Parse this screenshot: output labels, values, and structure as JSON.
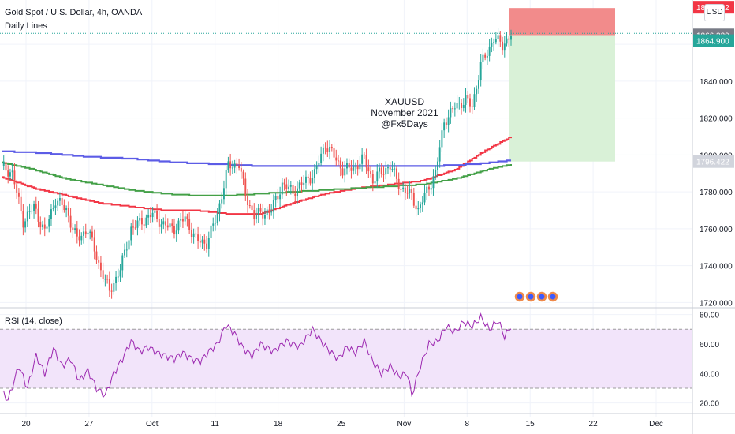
{
  "header": {
    "title": "Gold Spot / U.S. Dollar, 4h, OANDA",
    "indicator": "Daily Lines",
    "currency": "USD"
  },
  "annotation": {
    "line1": "XAUUSD",
    "line2": "November 2021",
    "line3": "@Fx5Days"
  },
  "rsi_label": "RSI (14, close)",
  "colors": {
    "up": "#26a69a",
    "down": "#ef5350",
    "red_line": "#f23645",
    "green_line": "#43a047",
    "blue_line": "#5c5ce6",
    "rsi_line": "#9c27b0",
    "rsi_band": "#f2e4fa",
    "stop_zone": "#f28b8b",
    "target_zone": "#d9f1d7",
    "price_dotted": "#26a69a"
  },
  "chart_data": [
    {
      "type": "candlestick",
      "title": "Gold Spot / U.S. Dollar, 4h, OANDA",
      "x_tick_labels": [
        "20",
        "27",
        "Oct",
        "11",
        "18",
        "25",
        "Nov",
        "8",
        "15",
        "22",
        "Dec"
      ],
      "y_tick_values": [
        1720,
        1740,
        1760,
        1780,
        1800,
        1820,
        1840,
        1860
      ],
      "y_tick_labels": [
        "1720.000",
        "1740.000",
        "1760.000",
        "1780.000",
        "1800.000",
        "1820.000",
        "1840.000",
        "1860.000"
      ],
      "ylim": [
        1718,
        1884
      ],
      "price_labels": {
        "stop": "1879.652",
        "current": "1866.339",
        "entry": "1864.900",
        "target": "1796.422"
      },
      "position": {
        "entry": 1864.9,
        "stop": 1879.652,
        "target": 1796.422
      },
      "anchors": [
        [
          0,
          1794
        ],
        [
          5,
          1790
        ],
        [
          10,
          1764
        ],
        [
          15,
          1772
        ],
        [
          20,
          1758
        ],
        [
          25,
          1776
        ],
        [
          30,
          1770
        ],
        [
          35,
          1754
        ],
        [
          40,
          1760
        ],
        [
          45,
          1741
        ],
        [
          50,
          1726
        ],
        [
          55,
          1738
        ],
        [
          60,
          1760
        ],
        [
          65,
          1764
        ],
        [
          70,
          1768
        ],
        [
          75,
          1762
        ],
        [
          80,
          1760
        ],
        [
          85,
          1766
        ],
        [
          90,
          1754
        ],
        [
          95,
          1752
        ],
        [
          100,
          1768
        ],
        [
          105,
          1794
        ],
        [
          110,
          1795
        ],
        [
          113,
          1778
        ],
        [
          117,
          1767
        ],
        [
          125,
          1770
        ],
        [
          130,
          1784
        ],
        [
          135,
          1780
        ],
        [
          140,
          1785
        ],
        [
          145,
          1790
        ],
        [
          150,
          1806
        ],
        [
          153,
          1801
        ],
        [
          158,
          1792
        ],
        [
          163,
          1793
        ],
        [
          168,
          1798
        ],
        [
          172,
          1786
        ],
        [
          175,
          1790
        ],
        [
          180,
          1794
        ],
        [
          185,
          1782
        ],
        [
          190,
          1778
        ],
        [
          193,
          1770
        ],
        [
          198,
          1783
        ],
        [
          201,
          1790
        ],
        [
          205,
          1818
        ],
        [
          210,
          1826
        ],
        [
          215,
          1830
        ],
        [
          218,
          1826
        ],
        [
          222,
          1849
        ],
        [
          225,
          1855
        ],
        [
          228,
          1864
        ],
        [
          232,
          1859
        ],
        [
          236,
          1866
        ]
      ],
      "series_lines": [
        {
          "color": "red",
          "points": [
            [
              0,
              1788
            ],
            [
              15,
              1782
            ],
            [
              30,
              1778
            ],
            [
              45,
              1774
            ],
            [
              60,
              1772
            ],
            [
              75,
              1770
            ],
            [
              90,
              1770
            ],
            [
              105,
              1768
            ],
            [
              120,
              1768
            ],
            [
              135,
              1774
            ],
            [
              150,
              1779
            ],
            [
              165,
              1782
            ],
            [
              180,
              1784
            ],
            [
              195,
              1786
            ],
            [
              210,
              1792
            ],
            [
              225,
              1803
            ],
            [
              236,
              1810
            ]
          ]
        },
        {
          "color": "green",
          "points": [
            [
              0,
              1796
            ],
            [
              15,
              1792
            ],
            [
              30,
              1787
            ],
            [
              45,
              1784
            ],
            [
              60,
              1781
            ],
            [
              75,
              1779
            ],
            [
              90,
              1778
            ],
            [
              105,
              1778
            ],
            [
              120,
              1779
            ],
            [
              135,
              1780
            ],
            [
              150,
              1781
            ],
            [
              165,
              1782
            ],
            [
              180,
              1783
            ],
            [
              195,
              1784
            ],
            [
              210,
              1787
            ],
            [
              225,
              1792
            ],
            [
              236,
              1795
            ]
          ]
        },
        {
          "color": "blue",
          "points": [
            [
              0,
              1802
            ],
            [
              20,
              1801
            ],
            [
              40,
              1799
            ],
            [
              60,
              1798
            ],
            [
              80,
              1796
            ],
            [
              100,
              1795
            ],
            [
              120,
              1794
            ],
            [
              140,
              1794
            ],
            [
              160,
              1794
            ],
            [
              180,
              1794
            ],
            [
              200,
              1794
            ],
            [
              220,
              1795
            ],
            [
              236,
              1797
            ]
          ]
        }
      ]
    },
    {
      "type": "line",
      "title": "RSI (14, close)",
      "y_tick_values": [
        20,
        40,
        60,
        80
      ],
      "y_tick_labels": [
        "20.00",
        "40.00",
        "60.00",
        "80.00"
      ],
      "ylim": [
        15,
        83
      ],
      "band": [
        30,
        70
      ],
      "anchors": [
        [
          0,
          28
        ],
        [
          3,
          22
        ],
        [
          8,
          45
        ],
        [
          12,
          30
        ],
        [
          16,
          52
        ],
        [
          20,
          40
        ],
        [
          24,
          57
        ],
        [
          28,
          45
        ],
        [
          32,
          50
        ],
        [
          36,
          35
        ],
        [
          40,
          42
        ],
        [
          44,
          30
        ],
        [
          48,
          25
        ],
        [
          52,
          40
        ],
        [
          56,
          50
        ],
        [
          60,
          62
        ],
        [
          64,
          55
        ],
        [
          68,
          58
        ],
        [
          72,
          54
        ],
        [
          76,
          52
        ],
        [
          80,
          50
        ],
        [
          84,
          54
        ],
        [
          88,
          50
        ],
        [
          92,
          48
        ],
        [
          96,
          55
        ],
        [
          100,
          60
        ],
        [
          104,
          73
        ],
        [
          108,
          67
        ],
        [
          112,
          57
        ],
        [
          116,
          52
        ],
        [
          120,
          60
        ],
        [
          126,
          55
        ],
        [
          132,
          62
        ],
        [
          138,
          58
        ],
        [
          144,
          70
        ],
        [
          148,
          62
        ],
        [
          152,
          55
        ],
        [
          156,
          50
        ],
        [
          160,
          58
        ],
        [
          164,
          54
        ],
        [
          168,
          62
        ],
        [
          172,
          48
        ],
        [
          176,
          40
        ],
        [
          180,
          45
        ],
        [
          184,
          38
        ],
        [
          188,
          40
        ],
        [
          190,
          25
        ],
        [
          194,
          45
        ],
        [
          198,
          60
        ],
        [
          202,
          62
        ],
        [
          206,
          72
        ],
        [
          210,
          68
        ],
        [
          214,
          75
        ],
        [
          218,
          72
        ],
        [
          222,
          78
        ],
        [
          226,
          70
        ],
        [
          230,
          76
        ],
        [
          233,
          65
        ],
        [
          236,
          72
        ]
      ]
    }
  ]
}
